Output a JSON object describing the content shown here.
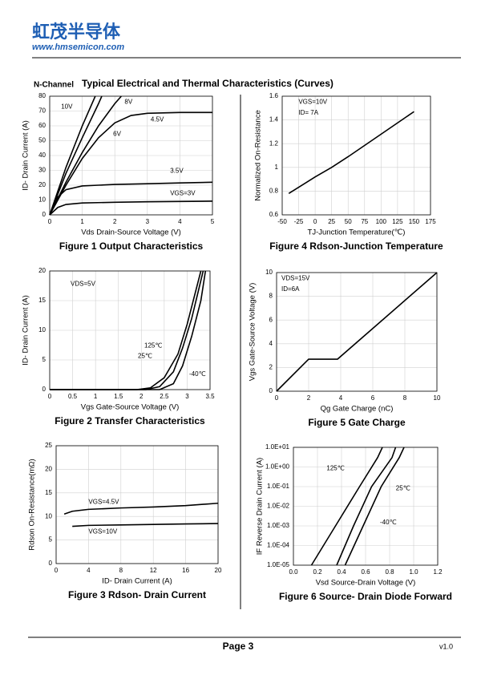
{
  "header": {
    "brand": "虹茂半导体",
    "url": "www.hmsemicon.com"
  },
  "section": {
    "prefix": "N-Channel",
    "title": "Typical Electrical and Thermal Characteristics (Curves)"
  },
  "chart_data": [
    {
      "type": "line",
      "title": "Figure 1 Output Characteristics",
      "x_label": "Vds Drain-Source Voltage (V)",
      "y_label": "ID- Drain Current (A)",
      "xlim": [
        0,
        5
      ],
      "ylim": [
        0,
        80
      ],
      "xticks": [
        0,
        1,
        2,
        3,
        4,
        5
      ],
      "yticks": [
        0,
        10,
        20,
        30,
        40,
        50,
        60,
        70,
        80
      ],
      "grid": true,
      "color": "#000000",
      "series": [
        {
          "name": "10V",
          "x": [
            0,
            0.5,
            1,
            1.4
          ],
          "values": [
            0,
            32,
            60,
            80
          ]
        },
        {
          "name": "8V",
          "x": [
            0,
            0.5,
            1,
            1.5,
            1.6
          ],
          "values": [
            0,
            28,
            52,
            75,
            80
          ]
        },
        {
          "name": "6V",
          "x": [
            0,
            0.5,
            1,
            1.5,
            2,
            2.2
          ],
          "values": [
            0,
            22,
            42,
            60,
            75,
            80
          ]
        },
        {
          "name": "4.5V",
          "x": [
            0,
            0.5,
            1,
            1.5,
            2,
            2.5,
            3,
            4,
            5
          ],
          "values": [
            0,
            20,
            38,
            52,
            62,
            67,
            68.5,
            69,
            69
          ]
        },
        {
          "name": "3.5V",
          "x": [
            0,
            0.25,
            0.5,
            1,
            1.5,
            2,
            3,
            4,
            5
          ],
          "values": [
            0,
            12,
            17,
            19.5,
            20,
            20.5,
            21,
            21.5,
            22
          ]
        },
        {
          "name": "VGS=3V",
          "x": [
            0,
            0.25,
            0.5,
            1,
            2,
            3,
            4,
            5
          ],
          "values": [
            0,
            5,
            7,
            8,
            8.5,
            8.8,
            9,
            9.2
          ]
        }
      ]
    },
    {
      "type": "line",
      "title": "Figure 2 Transfer Characteristics",
      "x_label": "Vgs Gate-Source Voltage (V)",
      "y_label": "ID- Drain Current (A)",
      "xlim": [
        0,
        3.5
      ],
      "ylim": [
        0,
        20
      ],
      "xticks": [
        0,
        0.5,
        1,
        1.5,
        2,
        2.5,
        3,
        3.5
      ],
      "yticks": [
        0,
        5,
        10,
        15,
        20
      ],
      "grid": true,
      "color": "#000000",
      "annotations": [
        "VDS=5V"
      ],
      "series": [
        {
          "name": "125℃",
          "x": [
            0,
            1.9,
            2.2,
            2.5,
            2.8,
            3.0,
            3.3
          ],
          "values": [
            0,
            0,
            0.3,
            2,
            6,
            11,
            20
          ]
        },
        {
          "name": "25℃",
          "x": [
            0,
            2.1,
            2.4,
            2.7,
            2.9,
            3.1,
            3.35
          ],
          "values": [
            0,
            0,
            0.5,
            3,
            7,
            12,
            20
          ]
        },
        {
          "name": "-40℃",
          "x": [
            0,
            2.4,
            2.7,
            2.9,
            3.1,
            3.3,
            3.4
          ],
          "values": [
            0,
            0,
            1,
            4,
            9,
            15,
            20
          ]
        }
      ]
    },
    {
      "type": "line",
      "title": "Figure 3 Rdson- Drain Current",
      "x_label": "ID- Drain Current (A)",
      "y_label": "Rdson On-Resistance(mΩ)",
      "xlim": [
        0,
        20
      ],
      "ylim": [
        0,
        25
      ],
      "xticks": [
        0,
        4,
        8,
        12,
        16,
        20
      ],
      "yticks": [
        0,
        5,
        10,
        15,
        20,
        25
      ],
      "grid": true,
      "color": "#000000",
      "series": [
        {
          "name": "VGS=4.5V",
          "x": [
            1,
            2,
            4,
            8,
            12,
            16,
            20
          ],
          "values": [
            10.5,
            11.1,
            11.5,
            11.8,
            12,
            12.3,
            12.8
          ]
        },
        {
          "name": "VGS=10V",
          "x": [
            2,
            4,
            8,
            12,
            16,
            20
          ],
          "values": [
            7.9,
            8.1,
            8.2,
            8.3,
            8.4,
            8.5
          ]
        }
      ]
    },
    {
      "type": "line",
      "title": "Figure 4 Rdson-Junction Temperature",
      "x_label": "TJ-Junction Temperature(℃)",
      "y_label": "Normalized On-Resistance",
      "xlim": [
        -50,
        175
      ],
      "ylim": [
        0.6,
        1.6
      ],
      "xticks": [
        -50,
        -25,
        0,
        25,
        50,
        75,
        100,
        125,
        150,
        175
      ],
      "yticks": [
        0.6,
        0.8,
        1,
        1.2,
        1.4,
        1.6
      ],
      "grid": true,
      "color": "#000000",
      "annotations": [
        "VGS=10V",
        "ID= 7A"
      ],
      "series": [
        {
          "x": [
            -40,
            0,
            25,
            50,
            100,
            150
          ],
          "values": [
            0.78,
            0.92,
            1.0,
            1.09,
            1.28,
            1.47
          ]
        }
      ]
    },
    {
      "type": "line",
      "title": "Figure 5 Gate Charge",
      "x_label": "Qg Gate Charge (nC)",
      "y_label": "Vgs Gate-Source Voltage (V)",
      "xlim": [
        0,
        10
      ],
      "ylim": [
        0,
        10
      ],
      "xticks": [
        0,
        2,
        4,
        6,
        8,
        10
      ],
      "yticks": [
        0,
        2,
        4,
        6,
        8,
        10
      ],
      "grid": true,
      "color": "#000000",
      "annotations": [
        "VDS=15V",
        "ID=6A"
      ],
      "series": [
        {
          "x": [
            0,
            2,
            3.8,
            10
          ],
          "values": [
            0,
            2.7,
            2.7,
            10
          ]
        }
      ]
    },
    {
      "type": "line",
      "title": "Figure 6 Source- Drain Diode Forward",
      "x_label": "Vsd Source-Drain Voltage (V)",
      "y_label": "IF Reverse Drain Current (A)",
      "xlim": [
        0,
        1.2
      ],
      "ylim": [
        1e-05,
        10
      ],
      "log_y": true,
      "xticks": [
        {
          "value": 0,
          "label": "0.0"
        },
        0.2,
        0.4,
        0.6,
        0.8,
        {
          "value": 1,
          "label": "1.0"
        },
        1.2
      ],
      "yticks": [
        {
          "value": 1e-05,
          "label": "1.0E-05"
        },
        {
          "value": 0.0001,
          "label": "1.0E-04"
        },
        {
          "value": 0.001,
          "label": "1.0E-03"
        },
        {
          "value": 0.01,
          "label": "1.0E-02"
        },
        {
          "value": 0.1,
          "label": "1.0E-01"
        },
        {
          "value": 1,
          "label": "1.0E+00"
        },
        {
          "value": 10,
          "label": "1.0E+01"
        }
      ],
      "grid": true,
      "color": "#000000",
      "series": [
        {
          "name": "125℃",
          "x": [
            0.15,
            0.35,
            0.55,
            0.7,
            0.74
          ],
          "values": [
            1e-05,
            0.001,
            0.1,
            3,
            10
          ]
        },
        {
          "name": "25℃",
          "x": [
            0.36,
            0.5,
            0.65,
            0.82,
            0.85
          ],
          "values": [
            1e-05,
            0.001,
            0.1,
            3,
            10
          ]
        },
        {
          "name": "-40℃",
          "x": [
            0.43,
            0.58,
            0.73,
            0.88,
            0.92
          ],
          "values": [
            1e-05,
            0.001,
            0.1,
            3,
            10
          ]
        }
      ]
    }
  ],
  "footer": {
    "page": "Page 3",
    "version": "v1.0"
  }
}
